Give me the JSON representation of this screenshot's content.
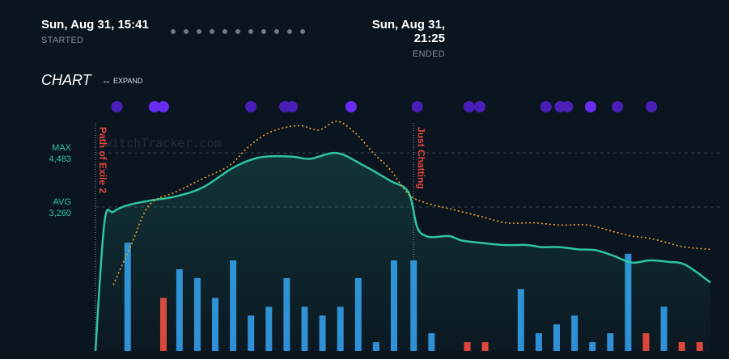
{
  "session": {
    "start_time": "Sun, Aug 31, 15:41",
    "start_label": "STARTED",
    "end_time": "Sun, Aug 31, 21:25",
    "end_label": "ENDED"
  },
  "chart_section": {
    "heading": "CHART",
    "expand_label": "EXPAND"
  },
  "watermark": "TwitchTracker.com",
  "colors": {
    "background": "#0b1520",
    "viewers_line": "#2ec4a0",
    "followers_line": "#f0a020",
    "bar_blue": "#2f8fd8",
    "bar_red": "#e0453a",
    "event_dot": "#4a1fb8",
    "event_dot_bright": "#6a2cf0"
  },
  "chart_data": {
    "type": "line",
    "y_reference_lines": [
      {
        "label": "MAX",
        "value": 4483
      },
      {
        "label": "AVG",
        "value": 3260
      }
    ],
    "ylim": [
      0,
      5200
    ],
    "x_range_minutes": [
      0,
      344
    ],
    "viewers": {
      "x": [
        0,
        5,
        10,
        18,
        30,
        45,
        60,
        75,
        85,
        95,
        110,
        120,
        135,
        150,
        165,
        175,
        180,
        185,
        190,
        198,
        205,
        215,
        228,
        240,
        245,
        250,
        260,
        270,
        280,
        290,
        300,
        310,
        320,
        330,
        344
      ],
      "values": [
        0,
        2900,
        3150,
        3300,
        3400,
        3500,
        3700,
        4100,
        4300,
        4400,
        4400,
        4350,
        4480,
        4200,
        3850,
        3600,
        2800,
        2600,
        2580,
        2600,
        2500,
        2450,
        2400,
        2400,
        2380,
        2350,
        2350,
        2300,
        2280,
        2150,
        2000,
        2050,
        2020,
        1950,
        1550
      ]
    },
    "followers_trend": {
      "x": [
        10,
        20,
        30,
        45,
        60,
        75,
        85,
        95,
        105,
        115,
        125,
        135,
        145,
        155,
        165,
        175,
        185,
        200,
        215,
        230,
        245,
        260,
        275,
        290,
        300,
        310,
        320,
        330,
        344
      ],
      "values": [
        1500,
        2400,
        3300,
        3600,
        3900,
        4200,
        4600,
        4900,
        5050,
        5100,
        5000,
        5200,
        4950,
        4500,
        4100,
        3550,
        3350,
        3200,
        3050,
        2900,
        2900,
        2850,
        2850,
        2700,
        2600,
        2550,
        2450,
        2350,
        2300
      ]
    },
    "activity_bars": [
      {
        "x": 18,
        "value": 2450,
        "color": "blue"
      },
      {
        "x": 38,
        "value": 1200,
        "color": "red"
      },
      {
        "x": 47,
        "value": 1850,
        "color": "blue"
      },
      {
        "x": 57,
        "value": 1650,
        "color": "blue"
      },
      {
        "x": 67,
        "value": 1200,
        "color": "blue"
      },
      {
        "x": 77,
        "value": 2050,
        "color": "blue"
      },
      {
        "x": 87,
        "value": 800,
        "color": "blue"
      },
      {
        "x": 97,
        "value": 1000,
        "color": "blue"
      },
      {
        "x": 107,
        "value": 1650,
        "color": "blue"
      },
      {
        "x": 117,
        "value": 1000,
        "color": "blue"
      },
      {
        "x": 127,
        "value": 800,
        "color": "blue"
      },
      {
        "x": 137,
        "value": 1000,
        "color": "blue"
      },
      {
        "x": 147,
        "value": 1650,
        "color": "blue"
      },
      {
        "x": 157,
        "value": 200,
        "color": "blue"
      },
      {
        "x": 167,
        "value": 2050,
        "color": "blue"
      },
      {
        "x": 178,
        "value": 2050,
        "color": "blue"
      },
      {
        "x": 188,
        "value": 400,
        "color": "blue"
      },
      {
        "x": 208,
        "value": 200,
        "color": "red"
      },
      {
        "x": 218,
        "value": 200,
        "color": "red"
      },
      {
        "x": 238,
        "value": 1400,
        "color": "blue"
      },
      {
        "x": 248,
        "value": 400,
        "color": "blue"
      },
      {
        "x": 258,
        "value": 600,
        "color": "blue"
      },
      {
        "x": 268,
        "value": 800,
        "color": "blue"
      },
      {
        "x": 278,
        "value": 200,
        "color": "blue"
      },
      {
        "x": 288,
        "value": 400,
        "color": "blue"
      },
      {
        "x": 298,
        "value": 2200,
        "color": "blue"
      },
      {
        "x": 308,
        "value": 400,
        "color": "red"
      },
      {
        "x": 318,
        "value": 1000,
        "color": "blue"
      },
      {
        "x": 328,
        "value": 200,
        "color": "red"
      },
      {
        "x": 338,
        "value": 200,
        "color": "red"
      }
    ],
    "game_segments": [
      {
        "start_minute": 0,
        "name": "Path of Exile 2"
      },
      {
        "start_minute": 178,
        "name": "Just Chatting"
      }
    ],
    "event_markers": [
      {
        "minute": 12,
        "bright": false
      },
      {
        "minute": 33,
        "bright": true
      },
      {
        "minute": 38,
        "bright": true
      },
      {
        "minute": 87,
        "bright": false
      },
      {
        "minute": 106,
        "bright": false
      },
      {
        "minute": 110,
        "bright": false
      },
      {
        "minute": 143,
        "bright": true
      },
      {
        "minute": 180,
        "bright": false
      },
      {
        "minute": 209,
        "bright": false
      },
      {
        "minute": 215,
        "bright": false
      },
      {
        "minute": 252,
        "bright": false
      },
      {
        "minute": 260,
        "bright": false
      },
      {
        "minute": 264,
        "bright": false
      },
      {
        "minute": 277,
        "bright": true
      },
      {
        "minute": 292,
        "bright": false
      },
      {
        "minute": 311,
        "bright": false
      }
    ]
  }
}
